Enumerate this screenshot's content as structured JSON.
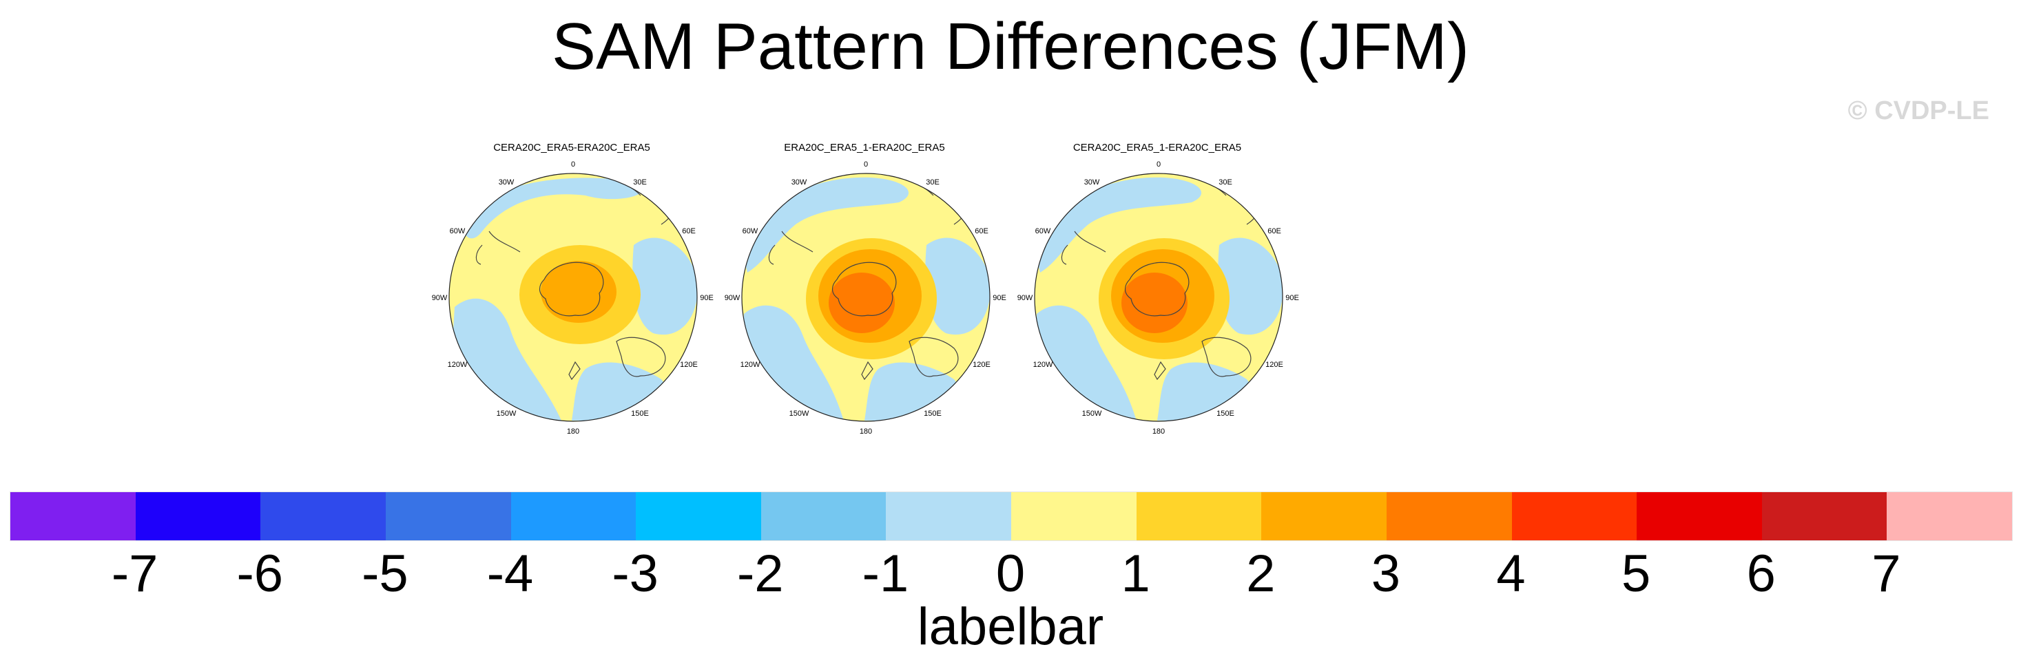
{
  "title": "SAM Pattern Differences (JFM)",
  "watermark": "© CVDP-LE",
  "panels": [
    {
      "title": "CERA20C_ERA5-ERA20C_ERA5",
      "pattern": "weak"
    },
    {
      "title": "ERA20C_ERA5_1-ERA20C_ERA5",
      "pattern": "strong"
    },
    {
      "title": "CERA20C_ERA5_1-ERA20C_ERA5",
      "pattern": "strong"
    }
  ],
  "longitude_labels": {
    "deg0": "0",
    "e30": "30E",
    "e60": "60E",
    "e90": "90E",
    "e120": "120E",
    "e150": "150E",
    "deg180": "180",
    "w150": "150W",
    "w120": "120W",
    "w90": "90W",
    "w60": "60W",
    "w30": "30W"
  },
  "colorbar": {
    "colors": [
      "#7f1ff0",
      "#1e00fb",
      "#2f4aec",
      "#3873e6",
      "#1d9aff",
      "#00bfff",
      "#75c7f0",
      "#b3def5",
      "#fff78c",
      "#ffd42a",
      "#ffaa00",
      "#ff7b00",
      "#ff3300",
      "#e80000",
      "#cc1c1c",
      "#ffb3b3"
    ],
    "ticks": [
      "-7",
      "-6",
      "-5",
      "-4",
      "-3",
      "-2",
      "-1",
      "0",
      "1",
      "2",
      "3",
      "4",
      "5",
      "6",
      "7"
    ],
    "label": "labelbar"
  }
}
